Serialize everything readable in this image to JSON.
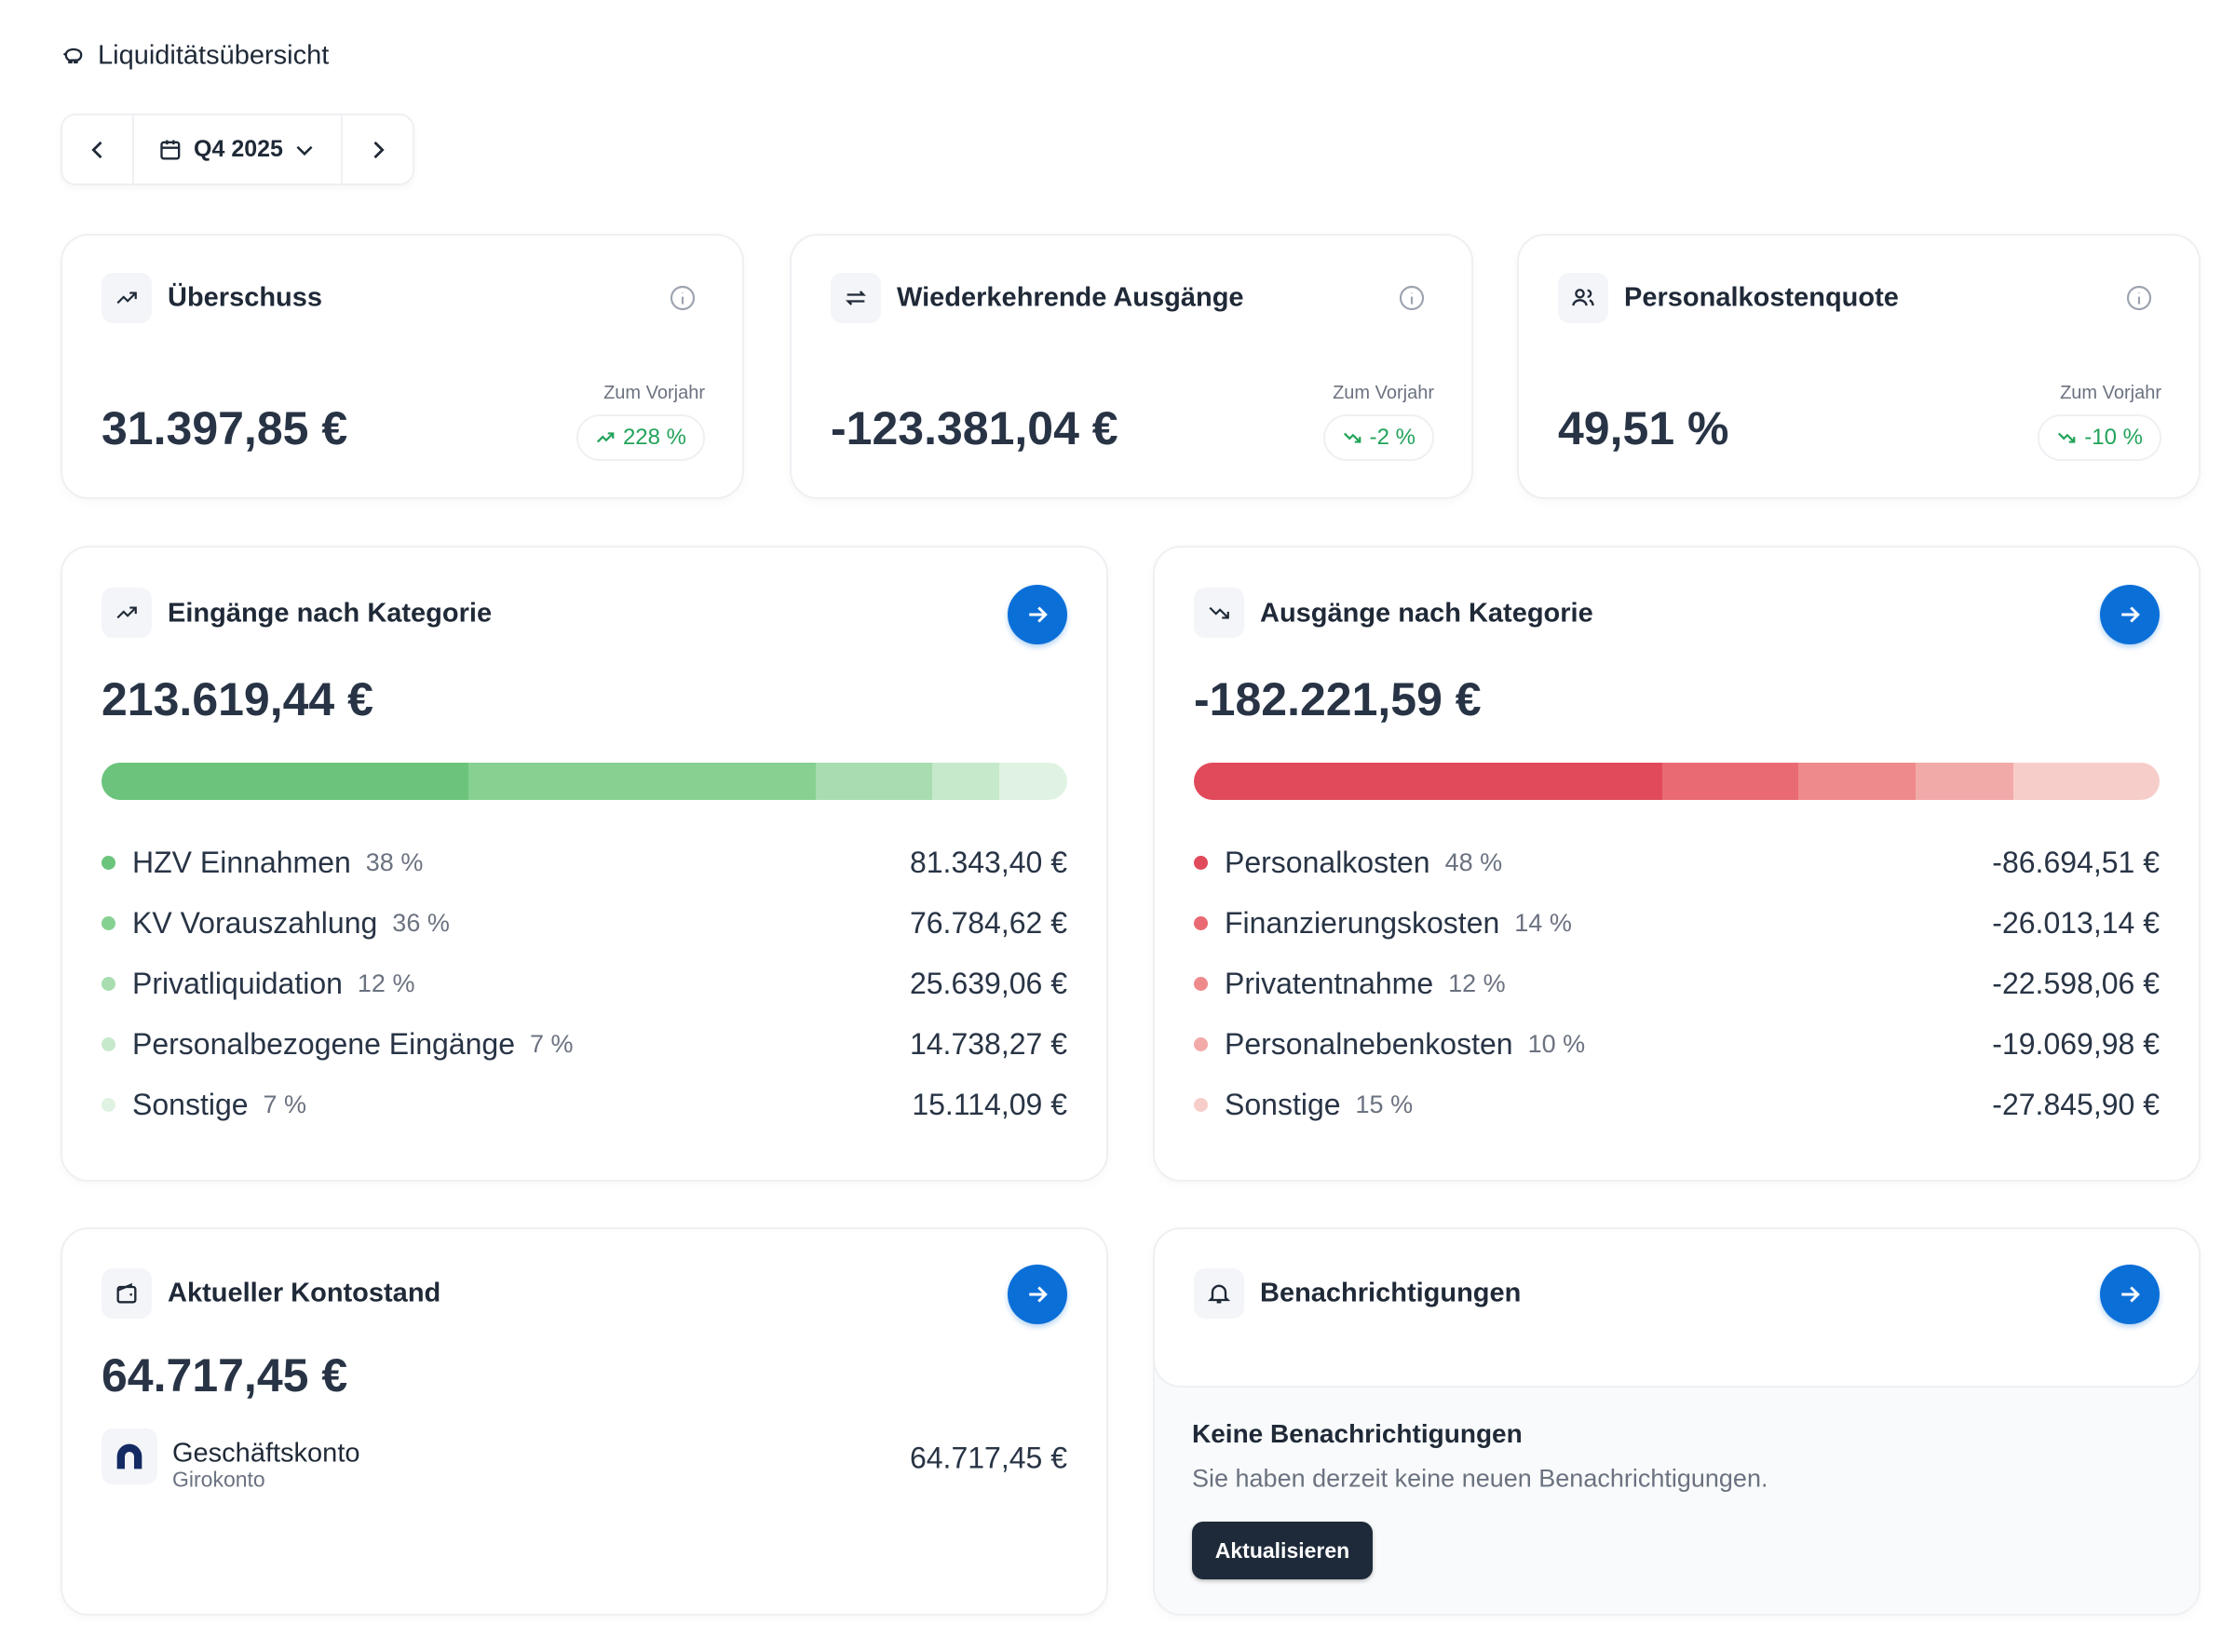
{
  "header": {
    "title": "Liquiditätsübersicht",
    "period": "Q4 2025"
  },
  "kpis": [
    {
      "title": "Überschuss",
      "value": "31.397,85 €",
      "comparison_label": "Zum Vorjahr",
      "change": "228 %"
    },
    {
      "title": "Wiederkehrende Ausgänge",
      "value": "-123.381,04 €",
      "comparison_label": "Zum Vorjahr",
      "change": "-2 %"
    },
    {
      "title": "Personalkostenquote",
      "value": "49,51 %",
      "comparison_label": "Zum Vorjahr",
      "change": "-10 %"
    }
  ],
  "income": {
    "title": "Eingänge nach Kategorie",
    "total": "213.619,44 €",
    "items": [
      {
        "label": "HZV Einnahmen",
        "share": 38,
        "share_label": "38 %",
        "amount": "81.343,40 €",
        "color": "#6cc47c"
      },
      {
        "label": "KV Vorauszahlung",
        "share": 36,
        "share_label": "36 %",
        "amount": "76.784,62 €",
        "color": "#86d192"
      },
      {
        "label": "Privatliquidation",
        "share": 12,
        "share_label": "12 %",
        "amount": "25.639,06 €",
        "color": "#a8ddb0"
      },
      {
        "label": "Personalbezogene Eingänge",
        "share": 7,
        "share_label": "7 %",
        "amount": "14.738,27 €",
        "color": "#c6e9cb"
      },
      {
        "label": "Sonstige",
        "share": 7,
        "share_label": "7 %",
        "amount": "15.114,09 €",
        "color": "#e0f3e3"
      }
    ]
  },
  "expenses": {
    "title": "Ausgänge nach Kategorie",
    "total": "-182.221,59 €",
    "items": [
      {
        "label": "Personalkosten",
        "share": 48,
        "share_label": "48 %",
        "amount": "-86.694,51 €",
        "color": "#e04a5a"
      },
      {
        "label": "Finanzierungskosten",
        "share": 14,
        "share_label": "14 %",
        "amount": "-26.013,14 €",
        "color": "#e96a72"
      },
      {
        "label": "Privatentnahme",
        "share": 12,
        "share_label": "12 %",
        "amount": "-22.598,06 €",
        "color": "#ee8a8c"
      },
      {
        "label": "Personalnebenkosten",
        "share": 10,
        "share_label": "10 %",
        "amount": "-19.069,98 €",
        "color": "#f2aaa8"
      },
      {
        "label": "Sonstige",
        "share": 15,
        "share_label": "15 %",
        "amount": "-27.845,90 €",
        "color": "#f7cdc9"
      }
    ]
  },
  "balance": {
    "title": "Aktueller Kontostand",
    "total": "64.717,45 €",
    "accounts": [
      {
        "name": "Geschäftskonto",
        "type": "Girokonto",
        "amount": "64.717,45 €"
      }
    ]
  },
  "notifications": {
    "title": "Benachrichtigungen",
    "empty_title": "Keine Benachrichtigungen",
    "empty_text": "Sie haben derzeit keine neuen Benachrichtigungen.",
    "button": "Aktualisieren"
  }
}
